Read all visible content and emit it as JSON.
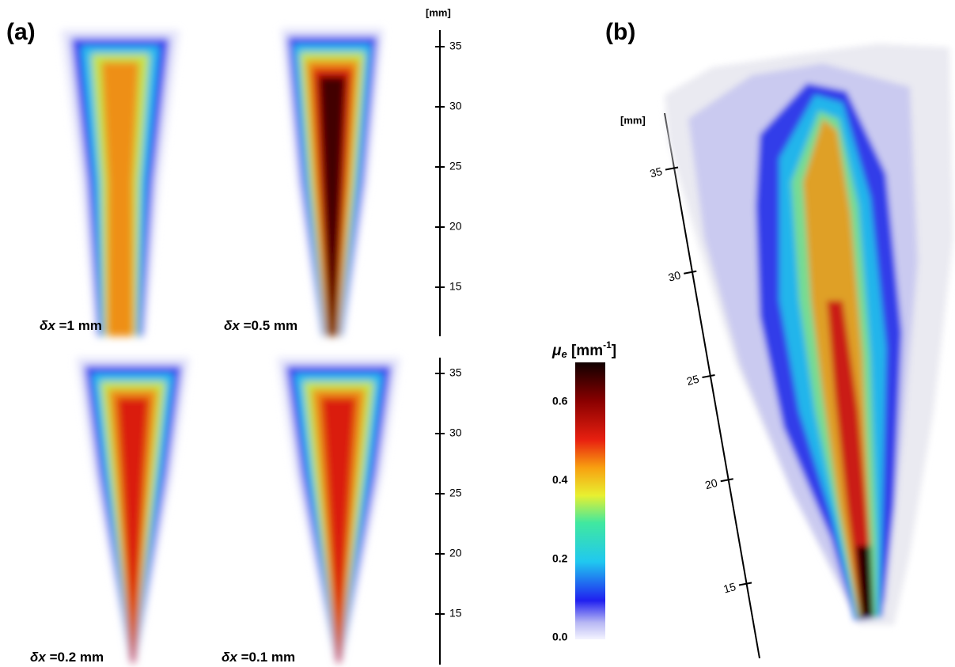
{
  "panel_a": {
    "label": "(a)",
    "axes": [
      {
        "unit": "[mm]",
        "ticks": [
          15,
          20,
          25,
          30,
          35
        ]
      },
      {
        "ticks": [
          15,
          20,
          25,
          30,
          35
        ]
      }
    ],
    "images": [
      {
        "symbol": "δ",
        "variable": "x",
        "text": " =1 mm"
      },
      {
        "symbol": "δ",
        "variable": "x",
        "text": " =0.5 mm"
      },
      {
        "symbol": "δ",
        "variable": "x",
        "text": " =0.2 mm"
      },
      {
        "symbol": "δ",
        "variable": "x",
        "text": " =0.1 mm"
      }
    ]
  },
  "colorbar": {
    "symbol": "μ",
    "subscript": "e",
    "unit": " [mm",
    "exponent": "-1",
    "close": "]",
    "ticks": [
      {
        "value": 0,
        "label": "0.0"
      },
      0.2,
      0.4,
      0.6
    ]
  },
  "panel_b": {
    "label": "(b)",
    "unit": "[mm]",
    "ticks": [
      15,
      20,
      25,
      30,
      35
    ]
  }
}
